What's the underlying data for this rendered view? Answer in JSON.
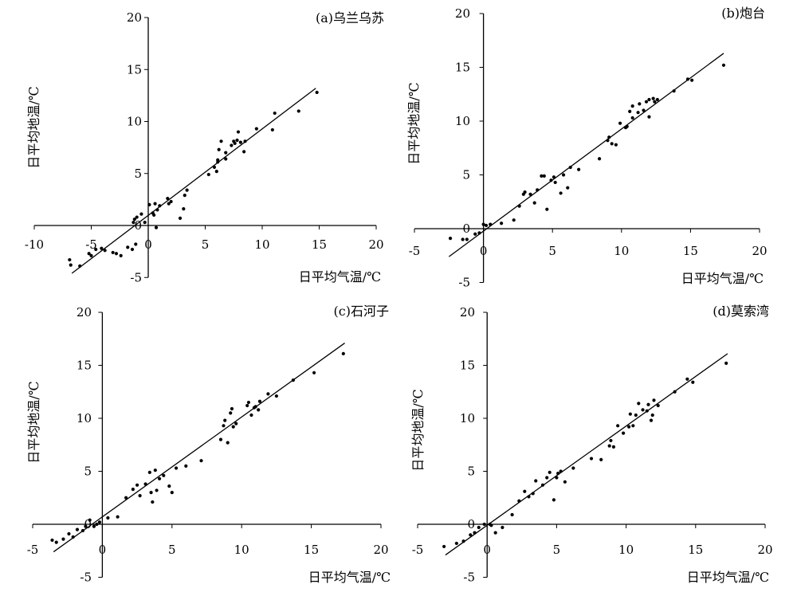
{
  "chart_data": [
    {
      "type": "scatter",
      "title": "(a)乌兰乌苏",
      "xlabel": "日平均气温/℃",
      "ylabel": "日平均地温/℃",
      "xlim": [
        -10,
        20
      ],
      "ylim": [
        -5,
        20
      ],
      "xticks": [
        -10,
        -5,
        0,
        5,
        10,
        15,
        20
      ],
      "yticks": [
        -5,
        0,
        5,
        10,
        15,
        20
      ],
      "xtick_labels": [
        "-10",
        "-5",
        "0",
        "5",
        "10",
        "15",
        "20"
      ],
      "ytick_labels": [
        "-5",
        "0",
        "5",
        "10",
        "15",
        "20"
      ],
      "fit_line": {
        "x": [
          -6.7,
          14.7
        ],
        "y": [
          -4.6,
          13.2
        ]
      },
      "points": [
        [
          -6.9,
          -3.3
        ],
        [
          -6.8,
          -3.8
        ],
        [
          -6.0,
          -3.9
        ],
        [
          -5.2,
          -2.7
        ],
        [
          -5.0,
          -2.9
        ],
        [
          -4.6,
          -2.3
        ],
        [
          -4.1,
          -2.2
        ],
        [
          -3.8,
          -2.4
        ],
        [
          -3.1,
          -2.6
        ],
        [
          -2.8,
          -2.7
        ],
        [
          -2.4,
          -2.9
        ],
        [
          -1.8,
          -2.1
        ],
        [
          -1.4,
          -2.3
        ],
        [
          -1.1,
          -1.8
        ],
        [
          -1.3,
          0.3
        ],
        [
          -1.2,
          0.6
        ],
        [
          -1.0,
          0.8
        ],
        [
          -0.6,
          1.1
        ],
        [
          -0.3,
          0.3
        ],
        [
          0.1,
          2.0
        ],
        [
          0.4,
          1.2
        ],
        [
          0.5,
          1.0
        ],
        [
          0.6,
          2.1
        ],
        [
          0.7,
          -0.2
        ],
        [
          0.8,
          1.5
        ],
        [
          1.0,
          1.9
        ],
        [
          1.8,
          2.1
        ],
        [
          1.7,
          2.6
        ],
        [
          2.0,
          2.3
        ],
        [
          2.8,
          0.7
        ],
        [
          3.1,
          1.6
        ],
        [
          3.2,
          2.9
        ],
        [
          3.4,
          3.4
        ],
        [
          5.3,
          4.9
        ],
        [
          5.8,
          5.6
        ],
        [
          6.1,
          6.1
        ],
        [
          6.0,
          5.2
        ],
        [
          6.1,
          6.3
        ],
        [
          6.2,
          7.3
        ],
        [
          6.4,
          8.1
        ],
        [
          6.8,
          6.4
        ],
        [
          6.8,
          7.0
        ],
        [
          7.3,
          7.7
        ],
        [
          7.5,
          8.1
        ],
        [
          7.6,
          7.9
        ],
        [
          7.8,
          8.2
        ],
        [
          7.9,
          9.0
        ],
        [
          8.1,
          8.0
        ],
        [
          8.4,
          7.1
        ],
        [
          8.5,
          8.1
        ],
        [
          9.5,
          9.3
        ],
        [
          10.9,
          9.2
        ],
        [
          11.1,
          10.8
        ],
        [
          13.2,
          11.0
        ],
        [
          14.8,
          12.8
        ]
      ]
    },
    {
      "type": "scatter",
      "title": "(b)炮台",
      "xlabel": "日平均气温/℃",
      "ylabel": "日平均地温/℃",
      "xlim": [
        -5,
        20
      ],
      "ylim": [
        -5,
        20
      ],
      "xticks": [
        -5,
        0,
        5,
        10,
        15,
        20
      ],
      "yticks": [
        -5,
        0,
        5,
        10,
        15,
        20
      ],
      "xtick_labels": [
        "-5",
        "0",
        "5",
        "10",
        "15",
        "20"
      ],
      "ytick_labels": [
        "-5",
        "0",
        "5",
        "10",
        "15",
        "20"
      ],
      "fit_line": {
        "x": [
          -2.5,
          17.4
        ],
        "y": [
          -2.6,
          16.3
        ]
      },
      "points": [
        [
          -2.4,
          -0.9
        ],
        [
          -1.5,
          -1.0
        ],
        [
          -1.2,
          -1.0
        ],
        [
          -0.6,
          -0.5
        ],
        [
          -0.3,
          -0.4
        ],
        [
          0.0,
          0.4
        ],
        [
          0.2,
          0.3
        ],
        [
          0.5,
          0.4
        ],
        [
          1.3,
          0.5
        ],
        [
          2.2,
          0.8
        ],
        [
          2.6,
          2.1
        ],
        [
          2.9,
          3.2
        ],
        [
          3.0,
          3.4
        ],
        [
          3.4,
          3.2
        ],
        [
          3.7,
          2.4
        ],
        [
          3.9,
          3.6
        ],
        [
          4.2,
          4.9
        ],
        [
          4.4,
          4.9
        ],
        [
          4.6,
          1.8
        ],
        [
          4.9,
          4.5
        ],
        [
          5.1,
          4.8
        ],
        [
          5.2,
          4.3
        ],
        [
          5.6,
          3.3
        ],
        [
          5.8,
          5.0
        ],
        [
          6.1,
          3.8
        ],
        [
          6.3,
          5.7
        ],
        [
          6.9,
          5.5
        ],
        [
          8.4,
          6.5
        ],
        [
          9.0,
          8.2
        ],
        [
          9.1,
          8.5
        ],
        [
          9.3,
          7.9
        ],
        [
          9.6,
          7.8
        ],
        [
          9.9,
          9.8
        ],
        [
          10.3,
          9.4
        ],
        [
          10.4,
          9.5
        ],
        [
          10.6,
          10.9
        ],
        [
          10.8,
          10.3
        ],
        [
          10.8,
          11.4
        ],
        [
          11.3,
          11.6
        ],
        [
          11.2,
          10.8
        ],
        [
          11.6,
          11.0
        ],
        [
          11.8,
          11.8
        ],
        [
          12.0,
          12.0
        ],
        [
          12.0,
          10.4
        ],
        [
          12.3,
          12.1
        ],
        [
          12.4,
          11.8
        ],
        [
          12.6,
          12.0
        ],
        [
          13.8,
          12.8
        ],
        [
          14.8,
          13.9
        ],
        [
          15.1,
          13.8
        ],
        [
          17.4,
          15.2
        ]
      ]
    },
    {
      "type": "scatter",
      "title": "(c)石河子",
      "xlabel": "日平均气温/℃",
      "ylabel": "日平均地温/℃",
      "xlim": [
        -5,
        20
      ],
      "ylim": [
        -5,
        20
      ],
      "xticks": [
        -5,
        0,
        5,
        10,
        15,
        20
      ],
      "yticks": [
        -5,
        0,
        5,
        10,
        15,
        20
      ],
      "xtick_labels": [
        "-5",
        "0",
        "5",
        "10",
        "15",
        "20"
      ],
      "ytick_labels": [
        "-5",
        "0",
        "5",
        "10",
        "15",
        "20"
      ],
      "fit_line": {
        "x": [
          -3.5,
          17.4
        ],
        "y": [
          -2.6,
          17.1
        ]
      },
      "points": [
        [
          -3.6,
          -1.5
        ],
        [
          -3.3,
          -1.7
        ],
        [
          -2.8,
          -1.4
        ],
        [
          -2.4,
          -0.9
        ],
        [
          -2.1,
          -1.2
        ],
        [
          -1.8,
          -0.5
        ],
        [
          -1.4,
          -0.6
        ],
        [
          -1.2,
          -0.2
        ],
        [
          -0.9,
          0.4
        ],
        [
          -0.6,
          -0.2
        ],
        [
          -0.4,
          0.0
        ],
        [
          -0.2,
          0.2
        ],
        [
          0.4,
          0.6
        ],
        [
          1.1,
          0.7
        ],
        [
          1.7,
          2.5
        ],
        [
          2.2,
          3.3
        ],
        [
          2.5,
          3.7
        ],
        [
          2.7,
          2.7
        ],
        [
          3.1,
          3.8
        ],
        [
          3.4,
          4.9
        ],
        [
          3.5,
          3.0
        ],
        [
          3.6,
          2.1
        ],
        [
          3.8,
          5.1
        ],
        [
          3.9,
          3.2
        ],
        [
          4.1,
          4.3
        ],
        [
          4.4,
          4.6
        ],
        [
          4.8,
          3.6
        ],
        [
          5.0,
          3.0
        ],
        [
          5.3,
          5.3
        ],
        [
          6.0,
          5.5
        ],
        [
          7.1,
          6.0
        ],
        [
          8.5,
          8.0
        ],
        [
          8.7,
          9.3
        ],
        [
          8.8,
          9.8
        ],
        [
          9.0,
          7.7
        ],
        [
          9.2,
          10.5
        ],
        [
          9.3,
          10.9
        ],
        [
          9.4,
          9.2
        ],
        [
          9.6,
          9.5
        ],
        [
          10.4,
          11.2
        ],
        [
          10.5,
          11.5
        ],
        [
          10.7,
          10.3
        ],
        [
          10.9,
          11.0
        ],
        [
          11.0,
          11.1
        ],
        [
          11.2,
          10.8
        ],
        [
          11.3,
          11.6
        ],
        [
          11.9,
          12.3
        ],
        [
          12.5,
          12.1
        ],
        [
          13.7,
          13.6
        ],
        [
          15.2,
          14.3
        ],
        [
          17.3,
          16.1
        ]
      ]
    },
    {
      "type": "scatter",
      "title": "(d)莫索湾",
      "xlabel": "日平均气温/℃",
      "ylabel": "日平均地温/℃",
      "xlim": [
        -5,
        20
      ],
      "ylim": [
        -5,
        20
      ],
      "xticks": [
        -5,
        0,
        5,
        10,
        15,
        20
      ],
      "yticks": [
        -5,
        0,
        5,
        10,
        15,
        20
      ],
      "xtick_labels": [
        "-5",
        "0",
        "5",
        "10",
        "15",
        "20"
      ],
      "ytick_labels": [
        "-5",
        "0",
        "5",
        "10",
        "15",
        "20"
      ],
      "fit_line": {
        "x": [
          -3.0,
          17.3
        ],
        "y": [
          -2.9,
          16.1
        ]
      },
      "points": [
        [
          -3.1,
          -2.1
        ],
        [
          -2.2,
          -1.8
        ],
        [
          -1.7,
          -1.6
        ],
        [
          -1.2,
          -1.0
        ],
        [
          -0.9,
          -0.8
        ],
        [
          -0.6,
          -0.3
        ],
        [
          -0.2,
          0.0
        ],
        [
          0.2,
          0.0
        ],
        [
          0.3,
          -0.1
        ],
        [
          0.6,
          -0.8
        ],
        [
          1.1,
          -0.3
        ],
        [
          1.8,
          0.9
        ],
        [
          2.3,
          2.2
        ],
        [
          2.7,
          3.1
        ],
        [
          3.0,
          2.6
        ],
        [
          3.3,
          2.9
        ],
        [
          3.5,
          4.1
        ],
        [
          4.0,
          3.7
        ],
        [
          4.3,
          4.4
        ],
        [
          4.5,
          4.9
        ],
        [
          4.8,
          2.3
        ],
        [
          5.0,
          4.4
        ],
        [
          5.1,
          4.8
        ],
        [
          5.3,
          5.0
        ],
        [
          5.6,
          4.0
        ],
        [
          6.2,
          5.3
        ],
        [
          7.5,
          6.2
        ],
        [
          8.2,
          6.1
        ],
        [
          8.8,
          7.4
        ],
        [
          8.9,
          7.9
        ],
        [
          9.1,
          7.3
        ],
        [
          9.4,
          9.3
        ],
        [
          9.8,
          8.6
        ],
        [
          10.2,
          9.2
        ],
        [
          10.3,
          10.4
        ],
        [
          10.5,
          9.3
        ],
        [
          10.7,
          10.3
        ],
        [
          10.9,
          11.4
        ],
        [
          11.2,
          10.8
        ],
        [
          11.5,
          10.7
        ],
        [
          11.6,
          11.3
        ],
        [
          11.8,
          9.8
        ],
        [
          11.9,
          10.3
        ],
        [
          12.0,
          11.7
        ],
        [
          12.3,
          11.2
        ],
        [
          13.5,
          12.5
        ],
        [
          14.4,
          13.7
        ],
        [
          14.8,
          13.4
        ],
        [
          17.2,
          15.2
        ]
      ]
    }
  ]
}
